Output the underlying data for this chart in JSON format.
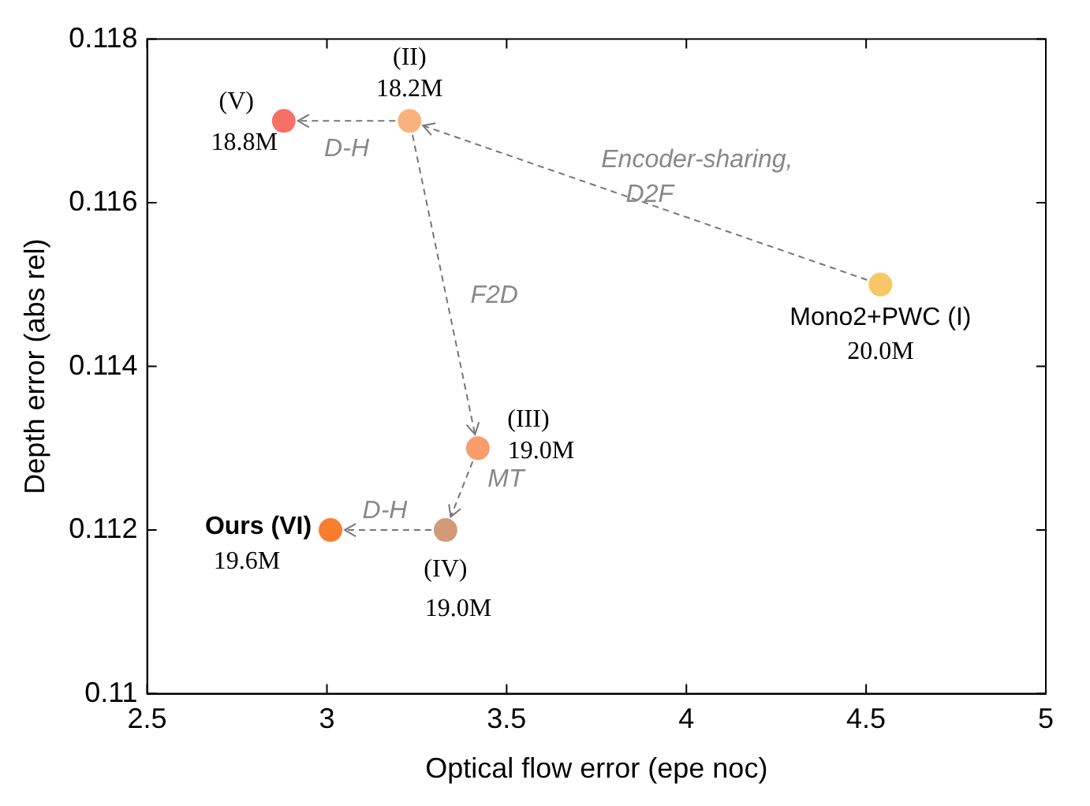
{
  "chart_data": {
    "type": "scatter",
    "xlabel": "Optical flow error (epe noc)",
    "ylabel": "Depth error (abs rel)",
    "xlim": [
      2.5,
      5
    ],
    "xticks": [
      2.5,
      3,
      3.5,
      4,
      4.5,
      5
    ],
    "ylim": [
      0.11,
      0.118
    ],
    "yticks": [
      0.11,
      0.112,
      0.114,
      0.116,
      0.118
    ],
    "grid": false,
    "legend": false,
    "marker": "circle",
    "series": [
      {
        "x": [
          4.54,
          3.23,
          3.42,
          3.33,
          2.88,
          3.01
        ],
        "values": [
          0.115,
          0.117,
          0.113,
          0.112,
          0.117,
          0.112
        ],
        "colors": [
          "#f7c766",
          "#f9b27e",
          "#f99c6b",
          "#d39a78",
          "#f77067",
          "#f97d2e"
        ]
      }
    ],
    "annotations": [
      {
        "text": "Mono2+PWC (I)",
        "x": 4.54,
        "y": 0.115
      },
      {
        "text": "20.0M",
        "x": 4.54,
        "y": 0.115
      },
      {
        "text": "(II)",
        "x": 3.23,
        "y": 0.117
      },
      {
        "text": "18.2M",
        "x": 3.23,
        "y": 0.117
      },
      {
        "text": "(III)",
        "x": 3.42,
        "y": 0.113
      },
      {
        "text": "19.0M",
        "x": 3.42,
        "y": 0.113
      },
      {
        "text": "(IV)",
        "x": 3.33,
        "y": 0.112
      },
      {
        "text": "19.0M",
        "x": 3.33,
        "y": 0.112
      },
      {
        "text": "(V)",
        "x": 2.88,
        "y": 0.117
      },
      {
        "text": "18.8M",
        "x": 2.88,
        "y": 0.117
      },
      {
        "text": "Ours (VI)",
        "x": 3.01,
        "y": 0.112
      },
      {
        "text": "19.6M",
        "x": 3.01,
        "y": 0.112
      },
      "D-H",
      "Encoder-sharing,",
      "D2F",
      "F2D",
      {
        "text": "MT",
        "x": 3.375,
        "y": 0.1125
      },
      "D-H"
    ]
  }
}
